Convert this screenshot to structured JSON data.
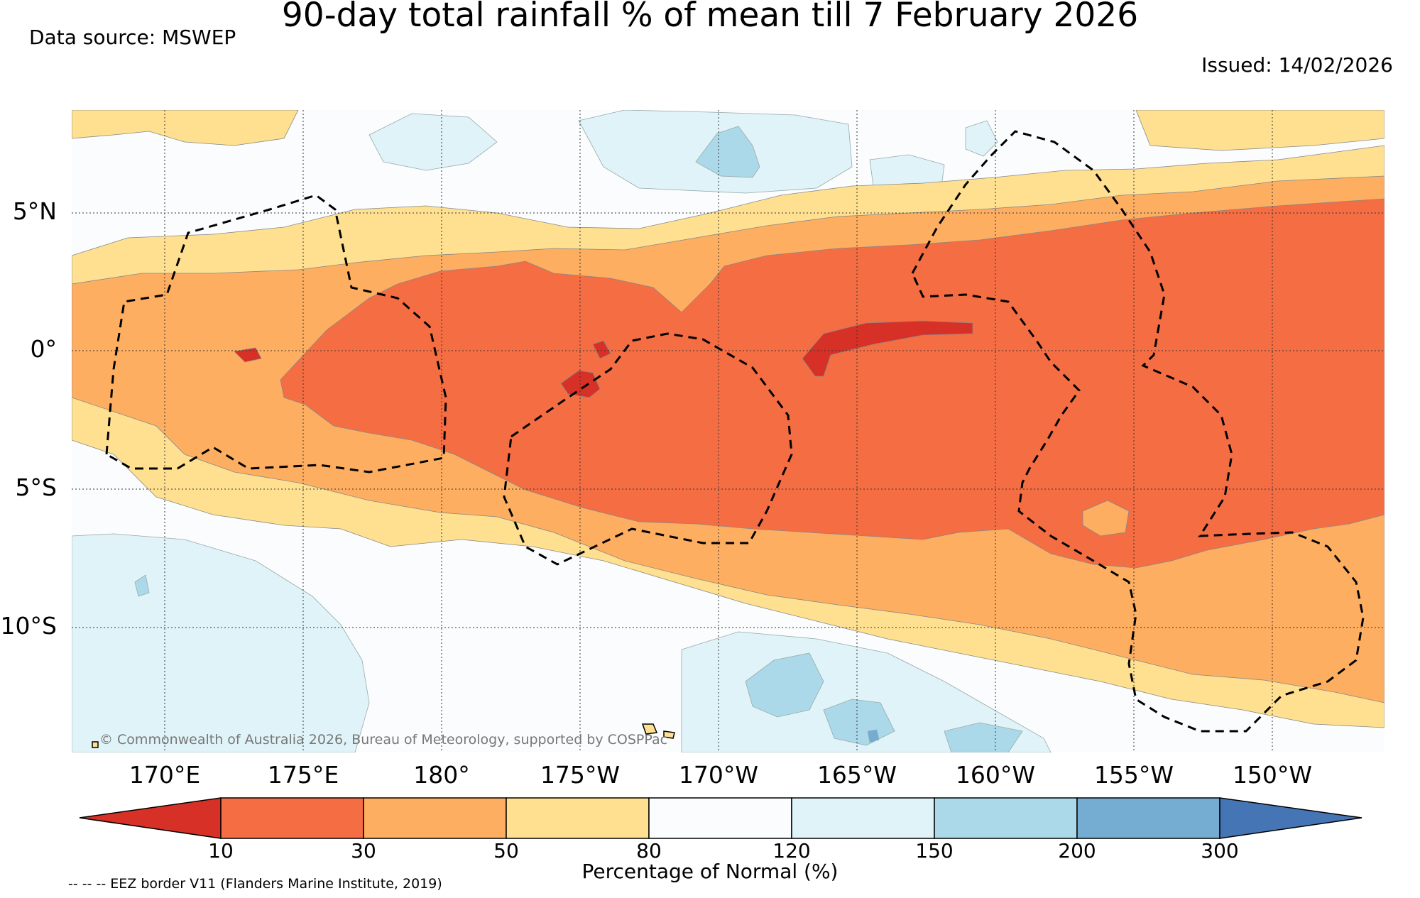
{
  "title": "90-day total rainfall % of mean till 7 February 2026",
  "data_source": "Data source: MSWEP",
  "issued": "Issued: 14/02/2026",
  "copyright": "© Commonwealth of Australia 2026, Bureau of Meteorology, supported by COSPPac",
  "eez_note": "-- -- -- EEZ border V11 (Flanders Marine Institute, 2019)",
  "latitude_labels": [
    "5°N",
    "0°",
    "5°S",
    "10°S"
  ],
  "longitude_labels": [
    "170°E",
    "175°E",
    "180°",
    "175°W",
    "170°W",
    "165°W",
    "160°W",
    "155°W",
    "150°W"
  ],
  "colorbar": {
    "title": "Percentage of Normal (%)",
    "ticks": [
      "10",
      "30",
      "50",
      "80",
      "120",
      "150",
      "200",
      "300"
    ],
    "colors": [
      "#d73027",
      "#f46d43",
      "#fdae61",
      "#fee090",
      "#fafcfd",
      "#e0f3f8",
      "#abd9e9",
      "#74add1",
      "#4575b4"
    ]
  }
}
